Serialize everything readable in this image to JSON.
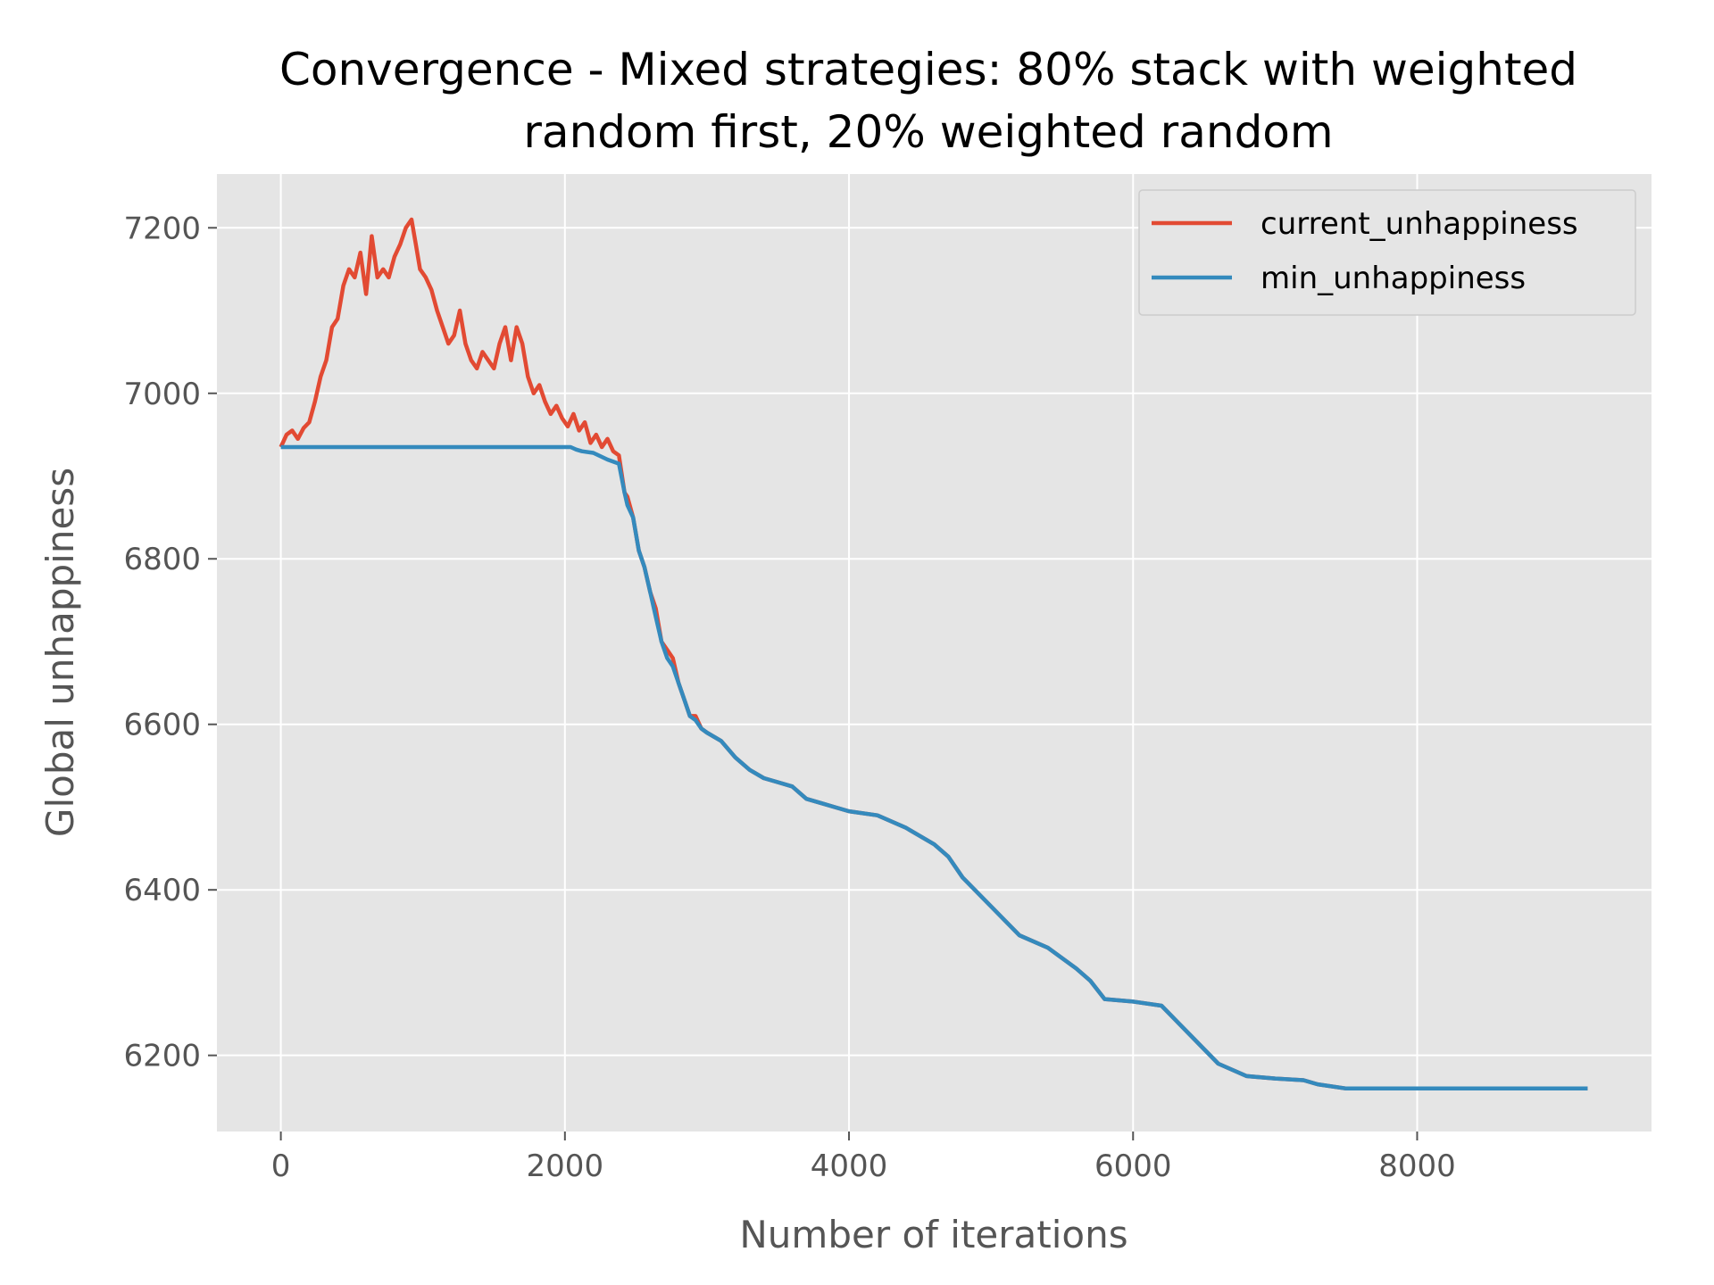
{
  "chart_data": {
    "type": "line",
    "title_lines": [
      "Convergence - Mixed strategies: 80% stack with weighted",
      "random first, 20% weighted random"
    ],
    "xlabel": "Number of iterations",
    "ylabel": "Global unhappiness",
    "xlim": [
      -450,
      9650
    ],
    "ylim": [
      6108,
      7265
    ],
    "xticks": [
      0,
      2000,
      4000,
      6000,
      8000
    ],
    "yticks": [
      6200,
      6400,
      6600,
      6800,
      7000,
      7200
    ],
    "grid": true,
    "legend_position": "top-right",
    "series": [
      {
        "name": "current_unhappiness",
        "color": "#E24A33",
        "x": [
          0,
          40,
          80,
          120,
          160,
          200,
          240,
          280,
          320,
          360,
          400,
          440,
          480,
          520,
          560,
          600,
          640,
          680,
          720,
          760,
          800,
          840,
          880,
          920,
          950,
          980,
          1020,
          1060,
          1100,
          1140,
          1180,
          1220,
          1260,
          1300,
          1340,
          1380,
          1420,
          1460,
          1500,
          1540,
          1580,
          1620,
          1660,
          1700,
          1740,
          1780,
          1820,
          1860,
          1900,
          1940,
          1980,
          2020,
          2060,
          2100,
          2140,
          2180,
          2220,
          2260,
          2300,
          2340,
          2380,
          2420,
          2440,
          2480,
          2520,
          2560,
          2600,
          2640,
          2680,
          2720,
          2760,
          2800,
          2840,
          2880,
          2920,
          2960,
          3000,
          3100,
          3200,
          3300,
          3400,
          3500,
          3600,
          3700,
          3800,
          3900,
          4000,
          4200,
          4400,
          4600,
          4700,
          4800,
          5000,
          5200,
          5400,
          5600,
          5700,
          5800,
          6000,
          6200,
          6400,
          6600,
          6800,
          7000,
          7200,
          7300,
          7500,
          7800,
          8000,
          8500,
          9000,
          9200
        ],
        "y": [
          6935,
          6950,
          6955,
          6945,
          6958,
          6965,
          6990,
          7020,
          7040,
          7080,
          7090,
          7130,
          7150,
          7140,
          7170,
          7120,
          7190,
          7140,
          7150,
          7140,
          7165,
          7180,
          7200,
          7210,
          7180,
          7150,
          7140,
          7125,
          7100,
          7080,
          7060,
          7070,
          7100,
          7060,
          7040,
          7030,
          7050,
          7040,
          7030,
          7060,
          7080,
          7040,
          7080,
          7060,
          7020,
          7000,
          7010,
          6990,
          6975,
          6985,
          6970,
          6960,
          6975,
          6955,
          6965,
          6940,
          6950,
          6935,
          6945,
          6930,
          6925,
          6880,
          6875,
          6850,
          6810,
          6790,
          6760,
          6740,
          6700,
          6690,
          6680,
          6650,
          6630,
          6610,
          6610,
          6595,
          6590,
          6580,
          6560,
          6545,
          6535,
          6530,
          6525,
          6510,
          6505,
          6500,
          6495,
          6490,
          6475,
          6455,
          6440,
          6415,
          6380,
          6345,
          6330,
          6305,
          6290,
          6268,
          6265,
          6260,
          6225,
          6190,
          6175,
          6172,
          6170,
          6165,
          6160,
          6160,
          6160,
          6160,
          6160,
          6160
        ]
      },
      {
        "name": "min_unhappiness",
        "color": "#348ABD",
        "x": [
          0,
          2040,
          2080,
          2120,
          2200,
          2300,
          2380,
          2420,
          2440,
          2480,
          2520,
          2560,
          2600,
          2640,
          2680,
          2720,
          2760,
          2800,
          2840,
          2880,
          2920,
          2960,
          3000,
          3100,
          3200,
          3300,
          3400,
          3500,
          3600,
          3700,
          3800,
          3900,
          4000,
          4200,
          4400,
          4600,
          4700,
          4800,
          5000,
          5200,
          5400,
          5600,
          5700,
          5800,
          6000,
          6200,
          6400,
          6600,
          6800,
          7000,
          7200,
          7300,
          7500,
          7800,
          8000,
          8500,
          9000,
          9200
        ],
        "y": [
          6935,
          6935,
          6932,
          6930,
          6928,
          6920,
          6915,
          6880,
          6865,
          6850,
          6810,
          6790,
          6760,
          6730,
          6700,
          6680,
          6670,
          6650,
          6630,
          6610,
          6605,
          6595,
          6590,
          6580,
          6560,
          6545,
          6535,
          6530,
          6525,
          6510,
          6505,
          6500,
          6495,
          6490,
          6475,
          6455,
          6440,
          6415,
          6380,
          6345,
          6330,
          6305,
          6290,
          6268,
          6265,
          6260,
          6225,
          6190,
          6175,
          6172,
          6170,
          6165,
          6160,
          6160,
          6160,
          6160,
          6160,
          6160
        ]
      }
    ]
  }
}
